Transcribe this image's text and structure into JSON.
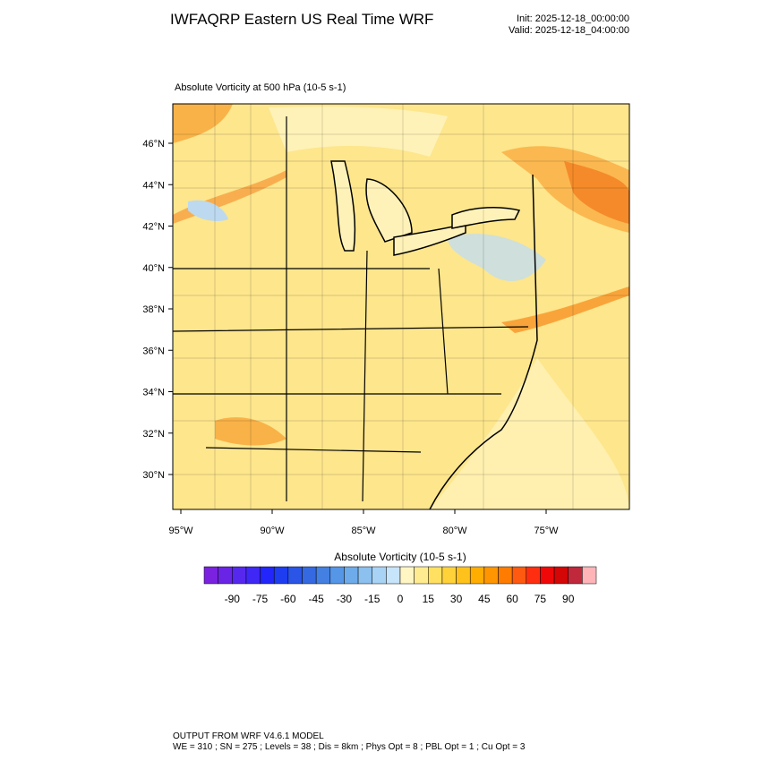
{
  "header": {
    "title": "IWFAQRP Eastern US Real Time WRF",
    "init": "Init: 2025-12-18_00:00:00",
    "valid": "Valid: 2025-12-18_04:00:00"
  },
  "map": {
    "subtitle": "Absolute Vorticity at 500 hPa   (10-5 s-1)",
    "lat_labels": [
      "46°N",
      "44°N",
      "42°N",
      "40°N",
      "38°N",
      "36°N",
      "34°N",
      "32°N",
      "30°N"
    ],
    "lon_labels": [
      "95°W",
      "90°W",
      "85°W",
      "80°W",
      "75°W"
    ]
  },
  "colorbar": {
    "title": "Absolute Vorticity  (10-5 s-1)",
    "ticks": [
      -90,
      -75,
      -60,
      -45,
      -30,
      -15,
      0,
      15,
      30,
      45,
      60,
      75,
      90
    ],
    "colors": [
      "#7a22df",
      "#6a24e6",
      "#5628ee",
      "#3f27f5",
      "#2226fa",
      "#1e3df0",
      "#2a55e6",
      "#3569e2",
      "#4380e2",
      "#5596e6",
      "#6eabea",
      "#8bc0ef",
      "#a8d3f5",
      "#c6e4fa",
      "#fff6c4",
      "#ffec90",
      "#ffe060",
      "#ffd23a",
      "#ffc21c",
      "#ffad00",
      "#ff9500",
      "#ff7c00",
      "#ff5a10",
      "#ff2e10",
      "#f00808",
      "#d40606",
      "#c0283c",
      "#ffb4b8"
    ]
  },
  "footer": {
    "line1": "OUTPUT FROM WRF V4.6.1 MODEL",
    "line2": "WE = 310 ; SN = 275 ; Levels = 38 ; Dis = 8km ; Phys Opt = 8 ; PBL Opt = 1 ; Cu Opt = 3"
  }
}
